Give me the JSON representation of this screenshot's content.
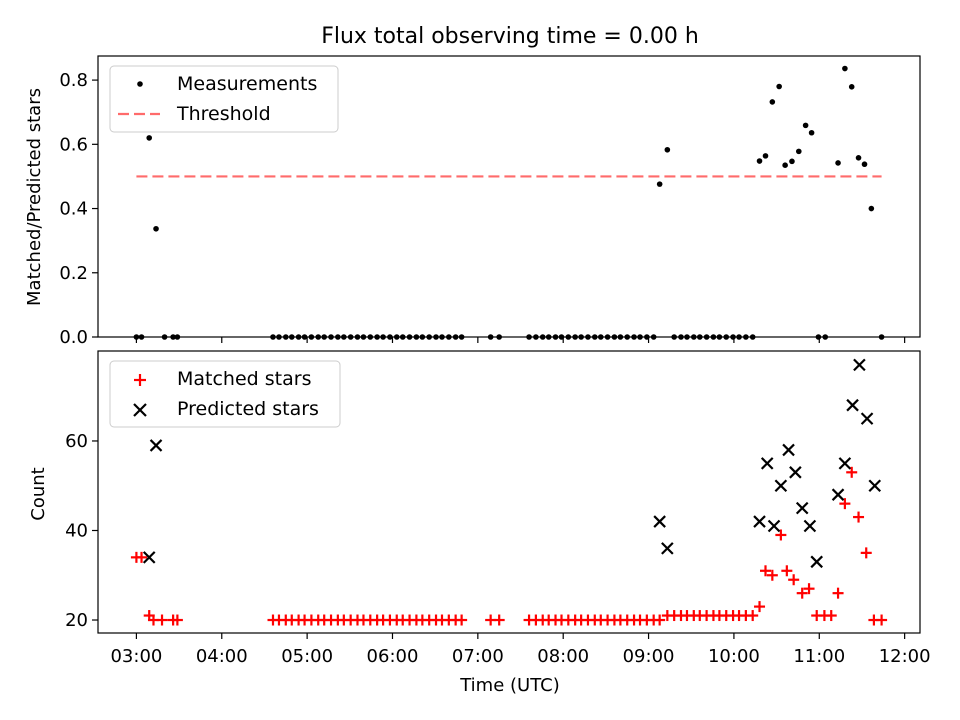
{
  "title": "Flux total observing time = 0.00 h",
  "x_axis": {
    "label": "Time (UTC)",
    "ticks": [
      "03:00",
      "04:00",
      "05:00",
      "06:00",
      "07:00",
      "08:00",
      "09:00",
      "10:00",
      "11:00",
      "12:00"
    ],
    "tick_hours": [
      3,
      4,
      5,
      6,
      7,
      8,
      9,
      10,
      11,
      12
    ],
    "range_hours": [
      2.55,
      12.18
    ]
  },
  "chart_data": [
    {
      "type": "scatter",
      "panel": "top",
      "ylabel": "Matched/Predicted stars",
      "ylim": [
        0,
        0.875
      ],
      "yticks": [
        0.0,
        0.2,
        0.4,
        0.6,
        0.8
      ],
      "ytick_labels": [
        "0.0",
        "0.2",
        "0.4",
        "0.6",
        "0.8"
      ],
      "legend": {
        "placement": "upper left"
      },
      "threshold": {
        "name": "Threshold",
        "value": 0.5,
        "x_range": [
          3.0,
          11.73
        ],
        "color": "#ff6b6b"
      },
      "series": [
        {
          "name": "Measurements",
          "color": "#000000",
          "points": [
            [
              3.0,
              0.0
            ],
            [
              3.06,
              0.0
            ],
            [
              3.15,
              0.62
            ],
            [
              3.23,
              0.337
            ],
            [
              3.33,
              0.0
            ],
            [
              3.43,
              0.0
            ],
            [
              3.48,
              0.0
            ],
            [
              4.6,
              0.0
            ],
            [
              4.67,
              0.0
            ],
            [
              4.75,
              0.0
            ],
            [
              4.82,
              0.0
            ],
            [
              4.9,
              0.0
            ],
            [
              4.97,
              0.0
            ],
            [
              5.05,
              0.0
            ],
            [
              5.13,
              0.0
            ],
            [
              5.2,
              0.0
            ],
            [
              5.28,
              0.0
            ],
            [
              5.36,
              0.0
            ],
            [
              5.43,
              0.0
            ],
            [
              5.51,
              0.0
            ],
            [
              5.59,
              0.0
            ],
            [
              5.66,
              0.0
            ],
            [
              5.74,
              0.0
            ],
            [
              5.82,
              0.0
            ],
            [
              5.89,
              0.0
            ],
            [
              5.97,
              0.0
            ],
            [
              6.05,
              0.0
            ],
            [
              6.12,
              0.0
            ],
            [
              6.2,
              0.0
            ],
            [
              6.28,
              0.0
            ],
            [
              6.35,
              0.0
            ],
            [
              6.43,
              0.0
            ],
            [
              6.51,
              0.0
            ],
            [
              6.58,
              0.0
            ],
            [
              6.66,
              0.0
            ],
            [
              6.74,
              0.0
            ],
            [
              6.81,
              0.0
            ],
            [
              7.15,
              0.0
            ],
            [
              7.25,
              0.0
            ],
            [
              7.6,
              0.0
            ],
            [
              7.68,
              0.0
            ],
            [
              7.76,
              0.0
            ],
            [
              7.83,
              0.0
            ],
            [
              7.91,
              0.0
            ],
            [
              7.98,
              0.0
            ],
            [
              8.06,
              0.0
            ],
            [
              8.14,
              0.0
            ],
            [
              8.21,
              0.0
            ],
            [
              8.29,
              0.0
            ],
            [
              8.37,
              0.0
            ],
            [
              8.44,
              0.0
            ],
            [
              8.52,
              0.0
            ],
            [
              8.6,
              0.0
            ],
            [
              8.67,
              0.0
            ],
            [
              8.75,
              0.0
            ],
            [
              8.83,
              0.0
            ],
            [
              8.9,
              0.0
            ],
            [
              8.98,
              0.0
            ],
            [
              9.06,
              0.0
            ],
            [
              9.13,
              0.476
            ],
            [
              9.22,
              0.583
            ],
            [
              9.3,
              0.0
            ],
            [
              9.38,
              0.0
            ],
            [
              9.45,
              0.0
            ],
            [
              9.53,
              0.0
            ],
            [
              9.6,
              0.0
            ],
            [
              9.68,
              0.0
            ],
            [
              9.76,
              0.0
            ],
            [
              9.83,
              0.0
            ],
            [
              9.91,
              0.0
            ],
            [
              9.99,
              0.0
            ],
            [
              10.06,
              0.0
            ],
            [
              10.14,
              0.0
            ],
            [
              10.22,
              0.0
            ],
            [
              10.3,
              0.548
            ],
            [
              10.37,
              0.564
            ],
            [
              10.45,
              0.732
            ],
            [
              10.53,
              0.78
            ],
            [
              10.6,
              0.535
            ],
            [
              10.68,
              0.547
            ],
            [
              10.76,
              0.578
            ],
            [
              10.84,
              0.659
            ],
            [
              10.91,
              0.636
            ],
            [
              10.99,
              0.0
            ],
            [
              11.07,
              0.0
            ],
            [
              11.22,
              0.542
            ],
            [
              11.3,
              0.836
            ],
            [
              11.38,
              0.779
            ],
            [
              11.46,
              0.558
            ],
            [
              11.53,
              0.538
            ],
            [
              11.61,
              0.4
            ],
            [
              11.73,
              0.0
            ]
          ]
        }
      ]
    },
    {
      "type": "scatter",
      "panel": "bottom",
      "ylabel": "Count",
      "ylim": [
        17.1,
        80.1
      ],
      "yticks": [
        20,
        40,
        60
      ],
      "ytick_labels": [
        "20",
        "40",
        "60"
      ],
      "legend": {
        "placement": "upper left"
      },
      "series": [
        {
          "name": "Matched stars",
          "marker": "plus",
          "color": "#ff0000",
          "points": [
            [
              3.0,
              34
            ],
            [
              3.06,
              34
            ],
            [
              3.15,
              21
            ],
            [
              3.2,
              20
            ],
            [
              3.3,
              20
            ],
            [
              3.43,
              20
            ],
            [
              3.48,
              20
            ],
            [
              4.6,
              20
            ],
            [
              4.67,
              20
            ],
            [
              4.75,
              20
            ],
            [
              4.82,
              20
            ],
            [
              4.9,
              20
            ],
            [
              4.97,
              20
            ],
            [
              5.05,
              20
            ],
            [
              5.13,
              20
            ],
            [
              5.2,
              20
            ],
            [
              5.28,
              20
            ],
            [
              5.36,
              20
            ],
            [
              5.43,
              20
            ],
            [
              5.51,
              20
            ],
            [
              5.59,
              20
            ],
            [
              5.66,
              20
            ],
            [
              5.74,
              20
            ],
            [
              5.82,
              20
            ],
            [
              5.89,
              20
            ],
            [
              5.97,
              20
            ],
            [
              6.05,
              20
            ],
            [
              6.12,
              20
            ],
            [
              6.2,
              20
            ],
            [
              6.28,
              20
            ],
            [
              6.35,
              20
            ],
            [
              6.43,
              20
            ],
            [
              6.51,
              20
            ],
            [
              6.58,
              20
            ],
            [
              6.66,
              20
            ],
            [
              6.74,
              20
            ],
            [
              6.81,
              20
            ],
            [
              7.15,
              20
            ],
            [
              7.25,
              20
            ],
            [
              7.6,
              20
            ],
            [
              7.68,
              20
            ],
            [
              7.76,
              20
            ],
            [
              7.83,
              20
            ],
            [
              7.91,
              20
            ],
            [
              7.98,
              20
            ],
            [
              8.06,
              20
            ],
            [
              8.14,
              20
            ],
            [
              8.21,
              20
            ],
            [
              8.29,
              20
            ],
            [
              8.37,
              20
            ],
            [
              8.44,
              20
            ],
            [
              8.52,
              20
            ],
            [
              8.6,
              20
            ],
            [
              8.67,
              20
            ],
            [
              8.75,
              20
            ],
            [
              8.83,
              20
            ],
            [
              8.9,
              20
            ],
            [
              8.98,
              20
            ],
            [
              9.06,
              20
            ],
            [
              9.13,
              20
            ],
            [
              9.22,
              21
            ],
            [
              9.3,
              21
            ],
            [
              9.38,
              21
            ],
            [
              9.45,
              21
            ],
            [
              9.53,
              21
            ],
            [
              9.6,
              21
            ],
            [
              9.68,
              21
            ],
            [
              9.76,
              21
            ],
            [
              9.83,
              21
            ],
            [
              9.91,
              21
            ],
            [
              9.99,
              21
            ],
            [
              10.06,
              21
            ],
            [
              10.14,
              21
            ],
            [
              10.22,
              21
            ],
            [
              10.3,
              23
            ],
            [
              10.37,
              31
            ],
            [
              10.45,
              30
            ],
            [
              10.55,
              39
            ],
            [
              10.62,
              31
            ],
            [
              10.7,
              29
            ],
            [
              10.8,
              26
            ],
            [
              10.88,
              27
            ],
            [
              10.97,
              21
            ],
            [
              11.06,
              21
            ],
            [
              11.14,
              21
            ],
            [
              11.22,
              26
            ],
            [
              11.3,
              46
            ],
            [
              11.38,
              53
            ],
            [
              11.46,
              43
            ],
            [
              11.55,
              35
            ],
            [
              11.64,
              20
            ],
            [
              11.73,
              20
            ]
          ]
        },
        {
          "name": "Predicted stars",
          "marker": "x",
          "color": "#000000",
          "points": [
            [
              3.15,
              34
            ],
            [
              3.23,
              59
            ],
            [
              9.13,
              42
            ],
            [
              9.22,
              36
            ],
            [
              10.3,
              42
            ],
            [
              10.39,
              55
            ],
            [
              10.47,
              41
            ],
            [
              10.55,
              50
            ],
            [
              10.64,
              58
            ],
            [
              10.72,
              53
            ],
            [
              10.8,
              45
            ],
            [
              10.89,
              41
            ],
            [
              10.97,
              33
            ],
            [
              11.22,
              48
            ],
            [
              11.3,
              55
            ],
            [
              11.39,
              68
            ],
            [
              11.47,
              77
            ],
            [
              11.56,
              65
            ],
            [
              11.65,
              50
            ]
          ]
        }
      ]
    }
  ]
}
